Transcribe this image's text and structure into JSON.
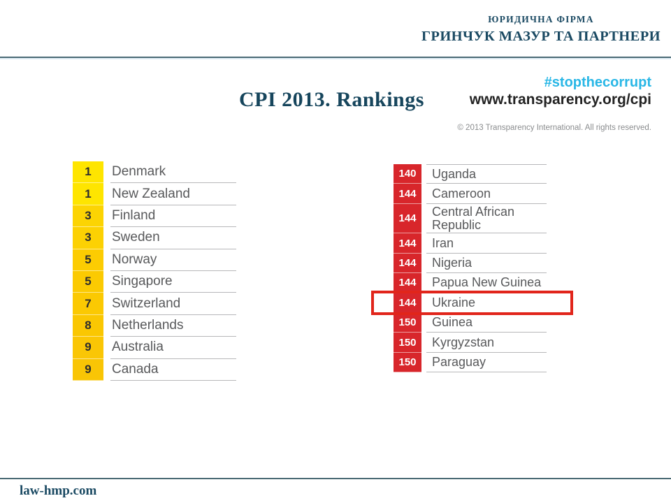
{
  "header": {
    "firm_type": "ЮРИДИЧНА ФІРМА",
    "firm_name": "ГРИНЧУК МАЗУР ТА ПАРТНЕРИ"
  },
  "title": "CPI 2013. Rankings",
  "source": {
    "hashtag": "#stopthecorrupt",
    "url": "www.transparency.org/cpi",
    "copyright": "© 2013 Transparency International. All rights reserved."
  },
  "footer": {
    "website": "law-hmp.com"
  },
  "colors": {
    "brand_teal": "#1b4a63",
    "hashtag_cyan": "#29b7e6",
    "ti_red": "#d8262b",
    "yellow_bright": "#fee500",
    "yellow_gold": "#fac800",
    "highlight_red": "#e1251b",
    "country_text_gray": "#58595b"
  },
  "chart_data": {
    "type": "table",
    "title": "CPI 2013. Rankings",
    "tables": [
      {
        "id": "top-ranked",
        "rows": [
          {
            "rank": "1",
            "country": "Denmark",
            "rank_color": "#fee500"
          },
          {
            "rank": "1",
            "country": "New Zealand",
            "rank_color": "#fee500"
          },
          {
            "rank": "3",
            "country": "Finland",
            "rank_color": "#fcd403"
          },
          {
            "rank": "3",
            "country": "Sweden",
            "rank_color": "#fcd103"
          },
          {
            "rank": "5",
            "country": "Norway",
            "rank_color": "#fccc02"
          },
          {
            "rank": "5",
            "country": "Singapore",
            "rank_color": "#fbca02"
          },
          {
            "rank": "7",
            "country": "Switzerland",
            "rank_color": "#fbc902"
          },
          {
            "rank": "8",
            "country": "Netherlands",
            "rank_color": "#fac702"
          },
          {
            "rank": "9",
            "country": "Australia",
            "rank_color": "#fac605"
          },
          {
            "rank": "9",
            "country": "Canada",
            "rank_color": "#f9c505"
          }
        ]
      },
      {
        "id": "bottom-ranked",
        "rows": [
          {
            "rank": "140",
            "country": "Uganda",
            "rank_color": "#d8262b"
          },
          {
            "rank": "144",
            "country": "Cameroon",
            "rank_color": "#d8262b"
          },
          {
            "rank": "144",
            "country": "Central African Republic",
            "rank_color": "#d8262b",
            "tall": true
          },
          {
            "rank": "144",
            "country": "Iran",
            "rank_color": "#d8262b"
          },
          {
            "rank": "144",
            "country": "Nigeria",
            "rank_color": "#d8262b"
          },
          {
            "rank": "144",
            "country": "Papua New Guinea",
            "rank_color": "#d8262b"
          },
          {
            "rank": "144",
            "country": "Ukraine",
            "rank_color": "#d8262b",
            "highlighted": true
          },
          {
            "rank": "150",
            "country": "Guinea",
            "rank_color": "#d8262b"
          },
          {
            "rank": "150",
            "country": "Kyrgyzstan",
            "rank_color": "#d8262b"
          },
          {
            "rank": "150",
            "country": "Paraguay",
            "rank_color": "#d8262b"
          }
        ]
      }
    ]
  }
}
